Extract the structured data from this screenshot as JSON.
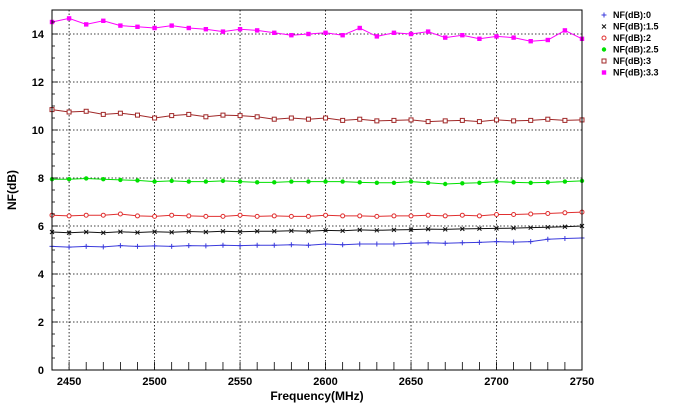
{
  "chart_data": {
    "type": "line",
    "title": "",
    "xlabel": "Frequency(MHz)",
    "ylabel": "NF(dB)",
    "xlim": [
      2440,
      2750
    ],
    "ylim": [
      0,
      15
    ],
    "x_ticks": [
      "2450",
      "2500",
      "2550",
      "2600",
      "2650",
      "2700",
      "2750"
    ],
    "y_ticks": [
      "0",
      "2",
      "4",
      "6",
      "8",
      "10",
      "12",
      "14"
    ],
    "grid": true,
    "legend_position": "top-right",
    "x": [
      2440,
      2450,
      2460,
      2470,
      2480,
      2490,
      2500,
      2510,
      2520,
      2530,
      2540,
      2550,
      2560,
      2570,
      2580,
      2590,
      2600,
      2610,
      2620,
      2630,
      2640,
      2650,
      2660,
      2670,
      2680,
      2690,
      2700,
      2710,
      2720,
      2730,
      2740,
      2750
    ],
    "series": [
      {
        "name": "NF(dB):0",
        "marker": "+",
        "color": "#3b3bdc",
        "values": [
          5.15,
          5.12,
          5.15,
          5.13,
          5.18,
          5.15,
          5.17,
          5.15,
          5.18,
          5.17,
          5.2,
          5.18,
          5.2,
          5.2,
          5.22,
          5.2,
          5.25,
          5.22,
          5.25,
          5.25,
          5.25,
          5.28,
          5.3,
          5.28,
          5.3,
          5.32,
          5.35,
          5.33,
          5.35,
          5.45,
          5.48,
          5.5
        ]
      },
      {
        "name": "NF(dB):1.5",
        "marker": "x",
        "color": "#111111",
        "values": [
          5.75,
          5.72,
          5.75,
          5.72,
          5.76,
          5.73,
          5.76,
          5.74,
          5.77,
          5.75,
          5.78,
          5.76,
          5.78,
          5.78,
          5.8,
          5.78,
          5.82,
          5.8,
          5.84,
          5.82,
          5.84,
          5.85,
          5.87,
          5.86,
          5.88,
          5.89,
          5.9,
          5.91,
          5.93,
          5.95,
          5.97,
          6.0
        ]
      },
      {
        "name": "NF(dB):2",
        "marker": "o",
        "color": "#e03030",
        "values": [
          6.45,
          6.42,
          6.45,
          6.45,
          6.5,
          6.42,
          6.4,
          6.45,
          6.42,
          6.4,
          6.4,
          6.45,
          6.4,
          6.42,
          6.4,
          6.4,
          6.45,
          6.42,
          6.42,
          6.4,
          6.42,
          6.42,
          6.45,
          6.42,
          6.45,
          6.42,
          6.48,
          6.48,
          6.5,
          6.52,
          6.55,
          6.58
        ]
      },
      {
        "name": "NF(dB):2.5",
        "marker": "filled-circle",
        "color": "#00e000",
        "values": [
          7.95,
          7.95,
          7.98,
          7.95,
          7.92,
          7.9,
          7.85,
          7.88,
          7.85,
          7.85,
          7.88,
          7.85,
          7.82,
          7.82,
          7.85,
          7.85,
          7.85,
          7.85,
          7.82,
          7.8,
          7.8,
          7.85,
          7.8,
          7.75,
          7.78,
          7.8,
          7.85,
          7.82,
          7.8,
          7.82,
          7.85,
          7.88
        ]
      },
      {
        "name": "NF(dB):3",
        "marker": "square",
        "color": "#a02828",
        "values": [
          10.85,
          10.75,
          10.78,
          10.65,
          10.7,
          10.62,
          10.5,
          10.6,
          10.65,
          10.55,
          10.62,
          10.6,
          10.55,
          10.45,
          10.5,
          10.45,
          10.5,
          10.4,
          10.45,
          10.38,
          10.4,
          10.42,
          10.35,
          10.38,
          10.4,
          10.35,
          10.42,
          10.38,
          10.4,
          10.45,
          10.4,
          10.42
        ]
      },
      {
        "name": "NF(dB):3.3",
        "marker": "filled-square",
        "color": "#ff00ff",
        "values": [
          14.5,
          14.65,
          14.4,
          14.55,
          14.35,
          14.3,
          14.25,
          14.35,
          14.25,
          14.2,
          14.1,
          14.2,
          14.15,
          14.05,
          13.95,
          14.0,
          14.05,
          13.95,
          14.25,
          13.9,
          14.05,
          14.0,
          14.1,
          13.85,
          13.95,
          13.8,
          13.9,
          13.85,
          13.7,
          13.75,
          14.15,
          13.8
        ]
      }
    ]
  }
}
